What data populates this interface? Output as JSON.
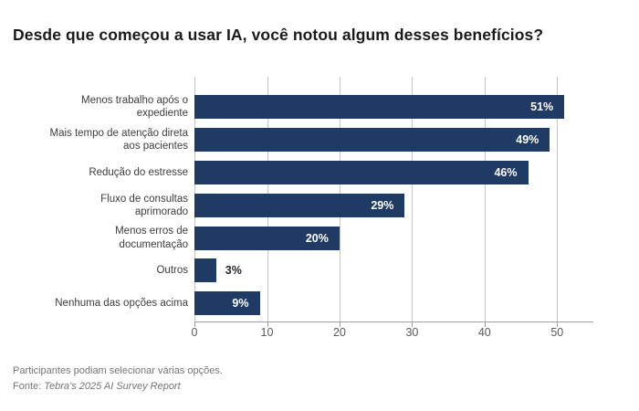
{
  "title": "Desde que começou a usar IA, você notou algum desses benefícios?",
  "chart_data": {
    "type": "bar",
    "orientation": "horizontal",
    "title": "Desde que começou a usar IA, você notou algum desses benefícios?",
    "categories": [
      "Menos trabalho após o\nexpediente",
      "Mais tempo de atenção direta\naos pacientes",
      "Redução do estresse",
      "Fluxo de consultas\naprimorado",
      "Menos erros de\ndocumentação",
      "Outros",
      "Nenhuma das opções acima"
    ],
    "values": [
      51,
      49,
      46,
      29,
      20,
      3,
      9
    ],
    "value_labels": [
      "51%",
      "49%",
      "46%",
      "29%",
      "20%",
      "3%",
      "9%"
    ],
    "xlabel": "",
    "ylabel": "",
    "xlim": [
      0,
      55
    ],
    "xticks": [
      0,
      10,
      20,
      30,
      40,
      50
    ],
    "xtick_labels": [
      "0",
      "10",
      "20",
      "30",
      "40",
      "50"
    ],
    "grid": "vertical",
    "legend": "none",
    "colors": {
      "bar": "#1f3b63",
      "value_label_inside": "#ffffff",
      "value_label_outside": "#262626",
      "gridline": "#c6c6c6",
      "axis": "#9e9e9e",
      "tick_label": "#595959",
      "category_label": "#3d3d3d",
      "title": "#1a1a1a",
      "footer": "#757575"
    }
  },
  "footer": {
    "note": "Participantes podiam selecionar várias opções.",
    "source_prefix": "Fonte: ",
    "source": "Tebra’s 2025 AI Survey Report"
  }
}
